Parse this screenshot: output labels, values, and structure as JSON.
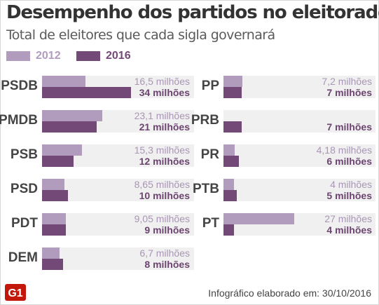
{
  "title": "Desempenho dos partidos no eleitorado",
  "subtitle": "Total de eleitores que cada sigla governará",
  "footer": {
    "credit": "Infográfico elaborado em: 30/10/2016",
    "logo_text": "G1"
  },
  "colors": {
    "2012": "#b29cbd",
    "2016": "#734a77",
    "band": "#f0f0f0",
    "logo": "#c4170c"
  },
  "chart_data": {
    "type": "bar",
    "title": "Desempenho dos partidos no eleitorado",
    "subtitle": "Total de eleitores que cada sigla governará",
    "unit": "milhões",
    "legend": [
      "2012",
      "2016"
    ],
    "legend_position": "top-left",
    "categories": [
      "PSDB",
      "PMDB",
      "PSB",
      "PSD",
      "PDT",
      "DEM",
      "PP",
      "PRB",
      "PR",
      "PTB",
      "PT"
    ],
    "series": [
      {
        "name": "2012",
        "values": [
          16.5,
          23.1,
          15.3,
          8.65,
          9.05,
          6.7,
          7.2,
          null,
          4.18,
          4,
          27
        ],
        "labels": [
          "16,5 milhões",
          "23,1 milhões",
          "15,3 milhões",
          "8,65 milhões",
          "9,05 milhões",
          "6,7 milhões",
          "7,2 milhões",
          "",
          "4,18 milhões",
          "4 milhões",
          "27 milhões"
        ]
      },
      {
        "name": "2016",
        "values": [
          34,
          21,
          12,
          10,
          9,
          8,
          7,
          7,
          6,
          5,
          4
        ],
        "labels": [
          "34 milhões",
          "21 milhões",
          "12 milhões",
          "10 milhões",
          "9 milhões",
          "8 milhões",
          "7 milhões",
          "7 milhões",
          "6 milhões",
          "5 milhões",
          "4 milhões"
        ]
      }
    ],
    "grid": false
  }
}
